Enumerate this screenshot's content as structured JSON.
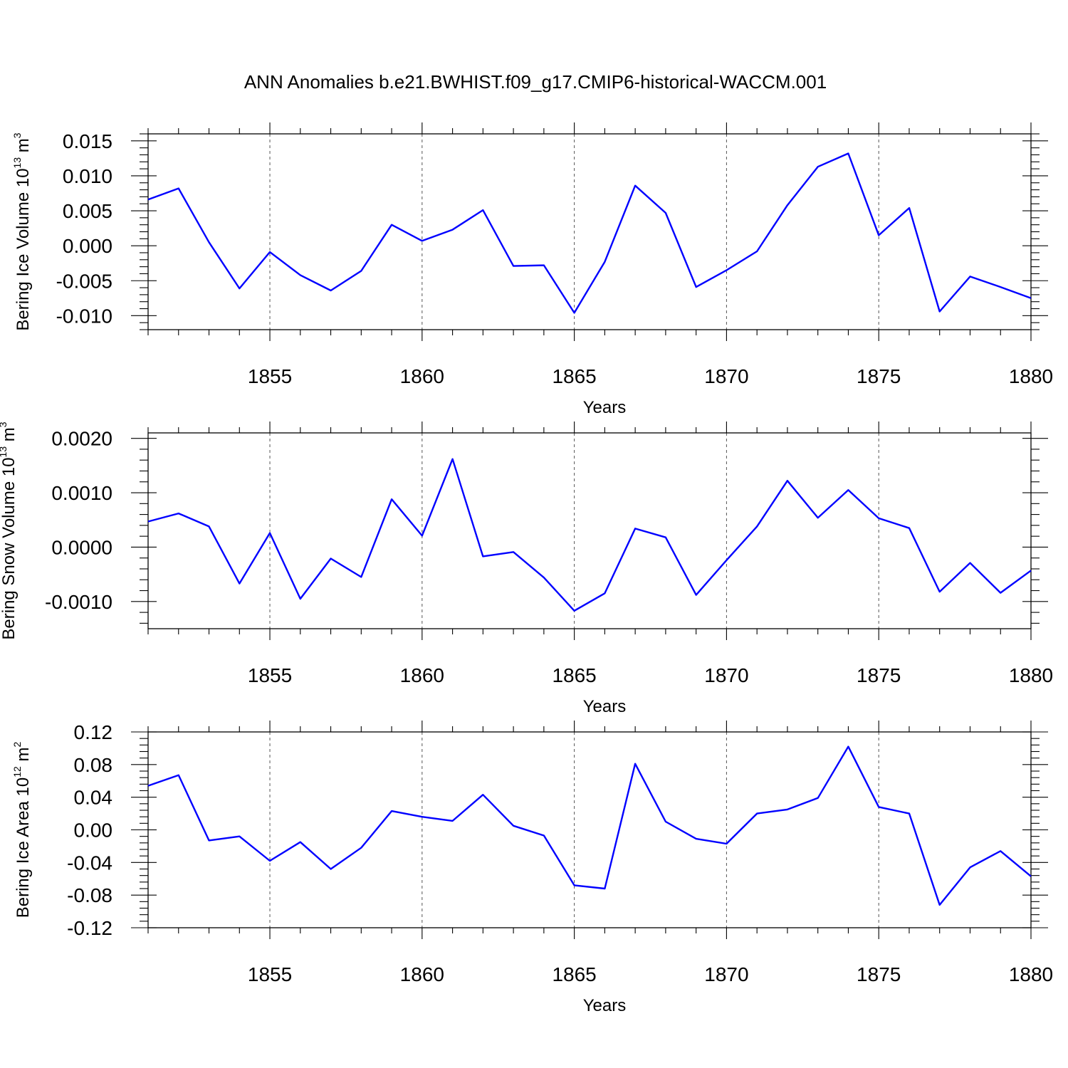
{
  "chart_data": {
    "type": "line",
    "title": "ANN Anomalies b.e21.BWHIST.f09_g17.CMIP6-historical-WACCM.001",
    "line_color": "#0000ff",
    "x": [
      1851,
      1852,
      1853,
      1854,
      1855,
      1856,
      1857,
      1858,
      1859,
      1860,
      1861,
      1862,
      1863,
      1864,
      1865,
      1866,
      1867,
      1868,
      1869,
      1870,
      1871,
      1872,
      1873,
      1874,
      1875,
      1876,
      1877,
      1878,
      1879,
      1880
    ],
    "xlim": [
      1851,
      1880
    ],
    "xticks": [
      1855,
      1860,
      1865,
      1870,
      1875,
      1880
    ],
    "xlabel": "Years",
    "grid": "dashed vertical at major x ticks",
    "panels": [
      {
        "ylabel_main": "Bering Ice Volume 10",
        "ylabel_sup": "13",
        "ylabel_unit": " m",
        "ylabel_unit_sup": "3",
        "ylim": [
          -0.012,
          0.016
        ],
        "yticks": [
          -0.01,
          -0.005,
          0.0,
          0.005,
          0.01,
          0.015
        ],
        "ytick_labels": [
          "-0.010",
          "-0.005",
          "0.000",
          "0.005",
          "0.010",
          "0.015"
        ],
        "values": [
          0.0066,
          0.0082,
          0.0005,
          -0.0061,
          -0.0009,
          -0.0042,
          -0.0064,
          -0.0036,
          0.003,
          0.0007,
          0.0023,
          0.0051,
          -0.0029,
          -0.0028,
          -0.0096,
          -0.0023,
          0.0086,
          0.0047,
          -0.0059,
          -0.0035,
          -0.0008,
          0.0058,
          0.0113,
          0.0132,
          0.0015,
          0.0054,
          -0.0094,
          -0.0044,
          -0.0059,
          -0.0075
        ]
      },
      {
        "ylabel_main": "Bering Snow Volume 10",
        "ylabel_sup": "13",
        "ylabel_unit": " m",
        "ylabel_unit_sup": "3",
        "ylim": [
          -0.0015,
          0.0021
        ],
        "yticks": [
          -0.001,
          0.0,
          0.001,
          0.002
        ],
        "ytick_labels": [
          "-0.0010",
          "0.0000",
          "0.0010",
          "0.0020"
        ],
        "values": [
          0.00047,
          0.00062,
          0.00038,
          -0.00067,
          0.00026,
          -0.00095,
          -0.00021,
          -0.00055,
          0.00088,
          0.00021,
          0.00162,
          -0.00017,
          -9e-05,
          -0.00056,
          -0.00117,
          -0.00085,
          0.00034,
          0.00018,
          -0.00088,
          -0.00024,
          0.00038,
          0.00122,
          0.00054,
          0.00105,
          0.00053,
          0.00035,
          -0.00082,
          -0.00029,
          -0.00084,
          -0.00043
        ]
      },
      {
        "ylabel_main": "Bering Ice Area 10",
        "ylabel_sup": "12",
        "ylabel_unit": " m",
        "ylabel_unit_sup": "2",
        "ylim": [
          -0.12,
          0.12
        ],
        "yticks": [
          -0.12,
          -0.08,
          -0.04,
          0.0,
          0.04,
          0.08,
          0.12
        ],
        "ytick_labels": [
          "-0.12",
          "-0.08",
          "-0.04",
          "0.00",
          "0.04",
          "0.08",
          "0.12"
        ],
        "values": [
          0.054,
          0.067,
          -0.013,
          -0.008,
          -0.038,
          -0.015,
          -0.048,
          -0.022,
          0.023,
          0.016,
          0.011,
          0.043,
          0.005,
          -0.007,
          -0.068,
          -0.072,
          0.081,
          0.01,
          -0.011,
          -0.017,
          0.02,
          0.025,
          0.039,
          0.102,
          0.028,
          0.02,
          -0.092,
          -0.046,
          -0.026,
          -0.057
        ]
      }
    ]
  }
}
